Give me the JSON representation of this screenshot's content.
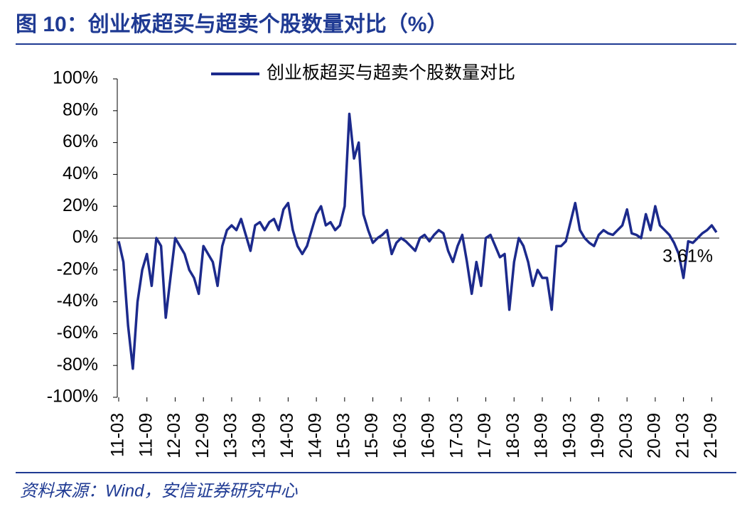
{
  "chart_data": {
    "type": "line",
    "title": "图 10：创业板超买与超卖个股数量对比（%）",
    "source": "资料来源：Wind，安信证券研究中心",
    "annotation": "3.61%",
    "categories": [
      "11-03",
      null,
      null,
      null,
      null,
      null,
      "11-09",
      null,
      null,
      null,
      null,
      null,
      "12-03",
      null,
      null,
      null,
      null,
      null,
      "12-09",
      null,
      null,
      null,
      null,
      null,
      "13-03",
      null,
      null,
      null,
      null,
      null,
      "13-09",
      null,
      null,
      null,
      null,
      null,
      "14-03",
      null,
      null,
      null,
      null,
      null,
      "14-09",
      null,
      null,
      null,
      null,
      null,
      "15-03",
      null,
      null,
      null,
      null,
      null,
      "15-09",
      null,
      null,
      null,
      null,
      null,
      "16-03",
      null,
      null,
      null,
      null,
      null,
      "16-09",
      null,
      null,
      null,
      null,
      null,
      "17-03",
      null,
      null,
      null,
      null,
      null,
      "17-09",
      null,
      null,
      null,
      null,
      null,
      "18-03",
      null,
      null,
      null,
      null,
      null,
      "18-09",
      null,
      null,
      null,
      null,
      null,
      "19-03",
      null,
      null,
      null,
      null,
      null,
      "19-09",
      null,
      null,
      null,
      null,
      null,
      "20-03",
      null,
      null,
      null,
      null,
      null,
      "20-09",
      null,
      null,
      null,
      null,
      null,
      "21-03",
      null,
      null,
      null,
      null,
      null,
      "21-09",
      null
    ],
    "series": [
      {
        "name": "创业板超买与超卖个股数量对比",
        "color": "#1c2a8c",
        "values": [
          -2,
          -15,
          -55,
          -82,
          -40,
          -20,
          -10,
          -30,
          0,
          -5,
          -50,
          -25,
          0,
          -5,
          -10,
          -20,
          -25,
          -35,
          -5,
          -10,
          -15,
          -30,
          -5,
          5,
          8,
          5,
          12,
          2,
          -8,
          8,
          10,
          5,
          10,
          12,
          5,
          18,
          22,
          5,
          -5,
          -10,
          -5,
          5,
          15,
          20,
          8,
          10,
          5,
          8,
          20,
          78,
          50,
          60,
          15,
          5,
          -3,
          0,
          2,
          5,
          -10,
          -3,
          0,
          -2,
          -5,
          -8,
          0,
          2,
          -2,
          2,
          5,
          3,
          -8,
          -15,
          -5,
          2,
          -15,
          -35,
          -15,
          -30,
          0,
          2,
          -5,
          -12,
          -10,
          -45,
          -15,
          0,
          -5,
          -15,
          -30,
          -20,
          -25,
          -25,
          -45,
          -5,
          -5,
          -2,
          10,
          22,
          5,
          0,
          -3,
          -5,
          2,
          5,
          3,
          2,
          5,
          8,
          18,
          3,
          2,
          0,
          15,
          5,
          20,
          8,
          5,
          2,
          -3,
          -10,
          -25,
          -2,
          -3,
          0,
          3,
          5,
          8,
          3.61
        ]
      }
    ],
    "ylim": [
      -100,
      100
    ],
    "yticks": [
      {
        "value": -100,
        "label": "-100%"
      },
      {
        "value": -80,
        "label": "-80%"
      },
      {
        "value": -60,
        "label": "-60%"
      },
      {
        "value": -40,
        "label": "-40%"
      },
      {
        "value": -20,
        "label": "-20%"
      },
      {
        "value": 0,
        "label": "0%"
      },
      {
        "value": 20,
        "label": "20%"
      },
      {
        "value": 40,
        "label": "40%"
      },
      {
        "value": 60,
        "label": "60%"
      },
      {
        "value": 80,
        "label": "80%"
      },
      {
        "value": 100,
        "label": "100%"
      }
    ],
    "legend": "top"
  }
}
